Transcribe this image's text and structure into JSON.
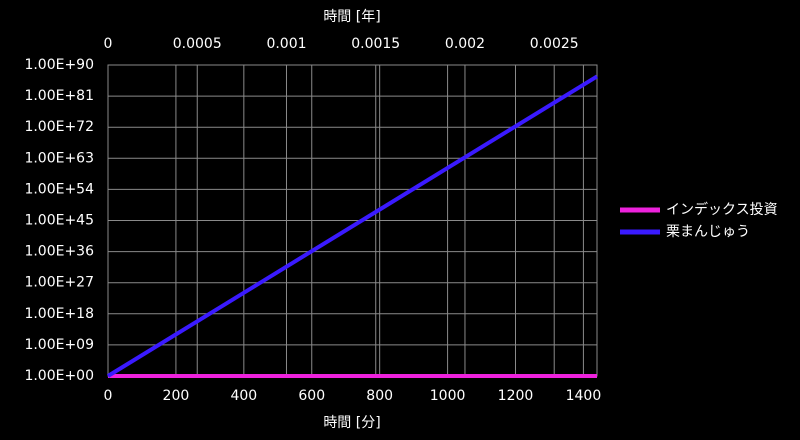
{
  "chart_data": {
    "type": "line",
    "xlabel": "時間 [分]",
    "x2label": "時間 [年]",
    "x": [
      0,
      1440
    ],
    "series": [
      {
        "name": "インデックス投資",
        "color": "#ee22dd",
        "values": [
          1,
          1
        ]
      },
      {
        "name": "栗まんじゅう",
        "color": "#3a1aff",
        "values": [
          1,
          4.97e+86
        ]
      }
    ],
    "xlim": [
      0,
      1440
    ],
    "xticks": [
      0,
      200,
      400,
      600,
      800,
      1000,
      1200,
      1400
    ],
    "x2lim": [
      0,
      0.00273973
    ],
    "x2ticks": [
      0,
      0.0005,
      0.001,
      0.0015,
      0.002,
      0.0025
    ],
    "ylim": [
      1,
      1e+90
    ],
    "log_y": true,
    "yticks": [
      {
        "value": 1,
        "label": "1.00E+00"
      },
      {
        "value": 1000000000.0,
        "label": "1.00E+09"
      },
      {
        "value": 1e+18,
        "label": "1.00E+18"
      },
      {
        "value": 1e+27,
        "label": "1.00E+27"
      },
      {
        "value": 1e+36,
        "label": "1.00E+36"
      },
      {
        "value": 1e+45,
        "label": "1.00E+45"
      },
      {
        "value": 1e+54,
        "label": "1.00E+54"
      },
      {
        "value": 1e+63,
        "label": "1.00E+63"
      },
      {
        "value": 1e+72,
        "label": "1.00E+72"
      },
      {
        "value": 1e+81,
        "label": "1.00E+81"
      },
      {
        "value": 1e+90,
        "label": "1.00E+90"
      }
    ],
    "grid": true,
    "legend": "right"
  }
}
